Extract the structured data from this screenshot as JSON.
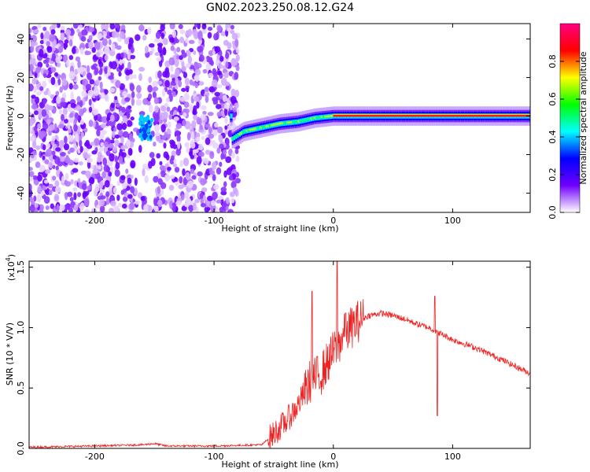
{
  "title": "GN02.2023.250.08.12.G24",
  "chart_data": [
    {
      "type": "heatmap",
      "xlabel": "Height of straight line (km)",
      "ylabel": "Frequency (Hz)",
      "xlim": [
        -255,
        165
      ],
      "ylim": [
        -50,
        48
      ],
      "xticks": [
        -200,
        -100,
        0,
        100
      ],
      "yticks": [
        40,
        20,
        0,
        -20,
        -40
      ],
      "colorbar": {
        "label": "Normalized spectral amplitude",
        "range": [
          0,
          1
        ],
        "ticks": [
          "0.0",
          "0.2",
          "0.4",
          "0.6",
          "0.8"
        ],
        "colors": [
          "#ffffff",
          "#7000ff",
          "#0000ff",
          "#00ffff",
          "#00ff00",
          "#ffff00",
          "#ff0000",
          "#ff0080"
        ]
      },
      "ridge": [
        {
          "x": -85,
          "y": -12
        },
        {
          "x": -75,
          "y": -8
        },
        {
          "x": -60,
          "y": -6
        },
        {
          "x": -45,
          "y": -4
        },
        {
          "x": -30,
          "y": -3
        },
        {
          "x": -15,
          "y": -1
        },
        {
          "x": 0,
          "y": 0
        },
        {
          "x": 50,
          "y": 0
        },
        {
          "x": 100,
          "y": 0
        },
        {
          "x": 165,
          "y": 0
        }
      ]
    },
    {
      "type": "line",
      "xlabel": "Height of straight line (km)",
      "ylabel": "SNR (10 * V/V)",
      "yscale_label": "(x10",
      "yscale_exp": "4",
      "xlim": [
        -255,
        165
      ],
      "ylim": [
        0,
        1.55
      ],
      "xticks": [
        -200,
        -100,
        0,
        100
      ],
      "yticks": [
        "0.0",
        "0.5",
        "1.0",
        "1.5"
      ],
      "color": "#ee2222",
      "x": [
        -255,
        -200,
        -160,
        -150,
        -140,
        -100,
        -60,
        -50,
        -40,
        -30,
        -20,
        -10,
        0,
        10,
        20,
        30,
        40,
        50,
        60,
        70,
        80,
        90,
        100,
        120,
        140,
        165
      ],
      "y": [
        0.01,
        0.02,
        0.03,
        0.04,
        0.02,
        0.02,
        0.03,
        0.12,
        0.22,
        0.35,
        0.55,
        0.62,
        0.8,
        0.95,
        1.05,
        1.1,
        1.12,
        1.1,
        1.07,
        1.03,
        1.0,
        0.95,
        0.9,
        0.83,
        0.74,
        0.62
      ],
      "spikes": [
        {
          "x": -18,
          "y": 1.3
        },
        {
          "x": 3,
          "y": 1.55
        },
        {
          "x": 10,
          "y": 1.12
        },
        {
          "x": 85,
          "y": 1.26
        },
        {
          "x": 87,
          "y": 0.27
        }
      ]
    }
  ]
}
